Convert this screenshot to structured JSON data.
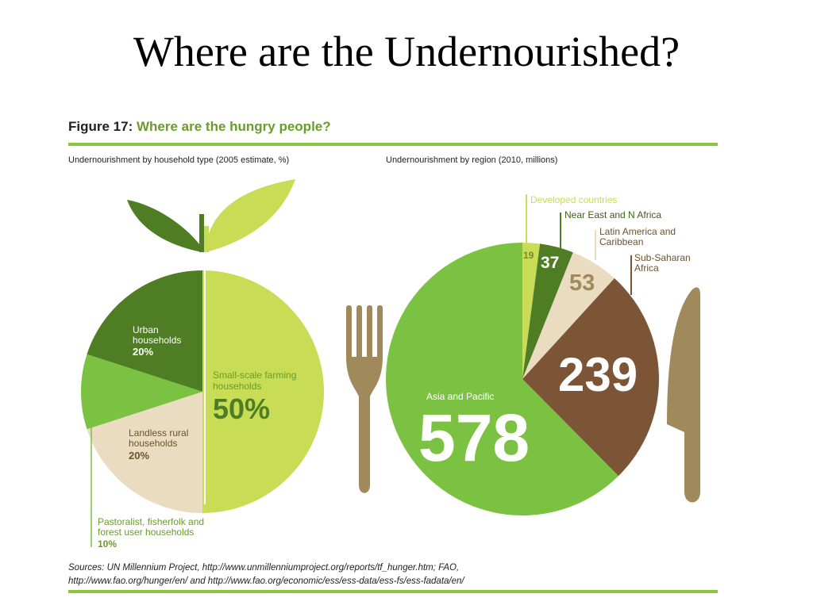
{
  "slide": {
    "title": "Where are the Undernourished?"
  },
  "figure": {
    "label": "Figure 17:",
    "title": "Where are the hungry people?",
    "left_subtitle": "Undernourishment by household type (2005 estimate, %)",
    "right_subtitle": "Undernourishment by region (2010, millions)",
    "sources_line1": "Sources: UN Millennium Project, http://www.unmillenniumproject.org/reports/tf_hunger.htm; FAO,",
    "sources_line2": "http://www.fao.org/hunger/en/ and http://www.fao.org/economic/ess/ess-data/ess-fs/ess-fadata/en/"
  },
  "chart_data": [
    {
      "type": "pie",
      "title": "Undernourishment by household type (2005 estimate, %)",
      "categories": [
        "Small-scale farming households",
        "Landless rural households",
        "Pastoralist, fisherfolk and forest user households",
        "Urban households"
      ],
      "values": [
        50,
        20,
        10,
        20
      ],
      "value_labels": [
        "50%",
        "20%",
        "10%",
        "20%"
      ],
      "label_lines": [
        [
          "Small-scale farming",
          "households"
        ],
        [
          "Landless rural",
          "households"
        ],
        [
          "Pastoralist, fisherfolk and",
          "forest user households"
        ],
        [
          "Urban",
          "households"
        ]
      ],
      "colors": [
        "#c8dc55",
        "#e9dcc0",
        "#7cc242",
        "#4f7d24"
      ]
    },
    {
      "type": "pie",
      "title": "Undernourishment by region (2010, millions)",
      "categories": [
        "Developed countries",
        "Near East and N Africa",
        "Latin America and Caribbean",
        "Sub-Saharan Africa",
        "Asia and Pacific"
      ],
      "values": [
        19,
        37,
        53,
        239,
        578
      ],
      "value_labels": [
        "19",
        "37",
        "53",
        "239",
        "578"
      ],
      "label_lines": [
        [
          "Developed countries"
        ],
        [
          "Near East and N Africa"
        ],
        [
          "Latin America and",
          "Caribbean"
        ],
        [
          "Sub-Saharan",
          "Africa"
        ],
        [
          "Asia and Pacific"
        ]
      ],
      "colors": [
        "#c8dc55",
        "#4f7d24",
        "#e9dcc0",
        "#7b5536",
        "#7cc242"
      ]
    }
  ],
  "colors": {
    "accent_green": "#8cc63f",
    "heading_green": "#6a9c2b",
    "leaf_dark": "#4f7d24",
    "leaf_light": "#c8dc55",
    "utensil_brown": "#a08a5c"
  },
  "icons": [
    "leaf-icon",
    "fork-icon",
    "knife-icon"
  ]
}
